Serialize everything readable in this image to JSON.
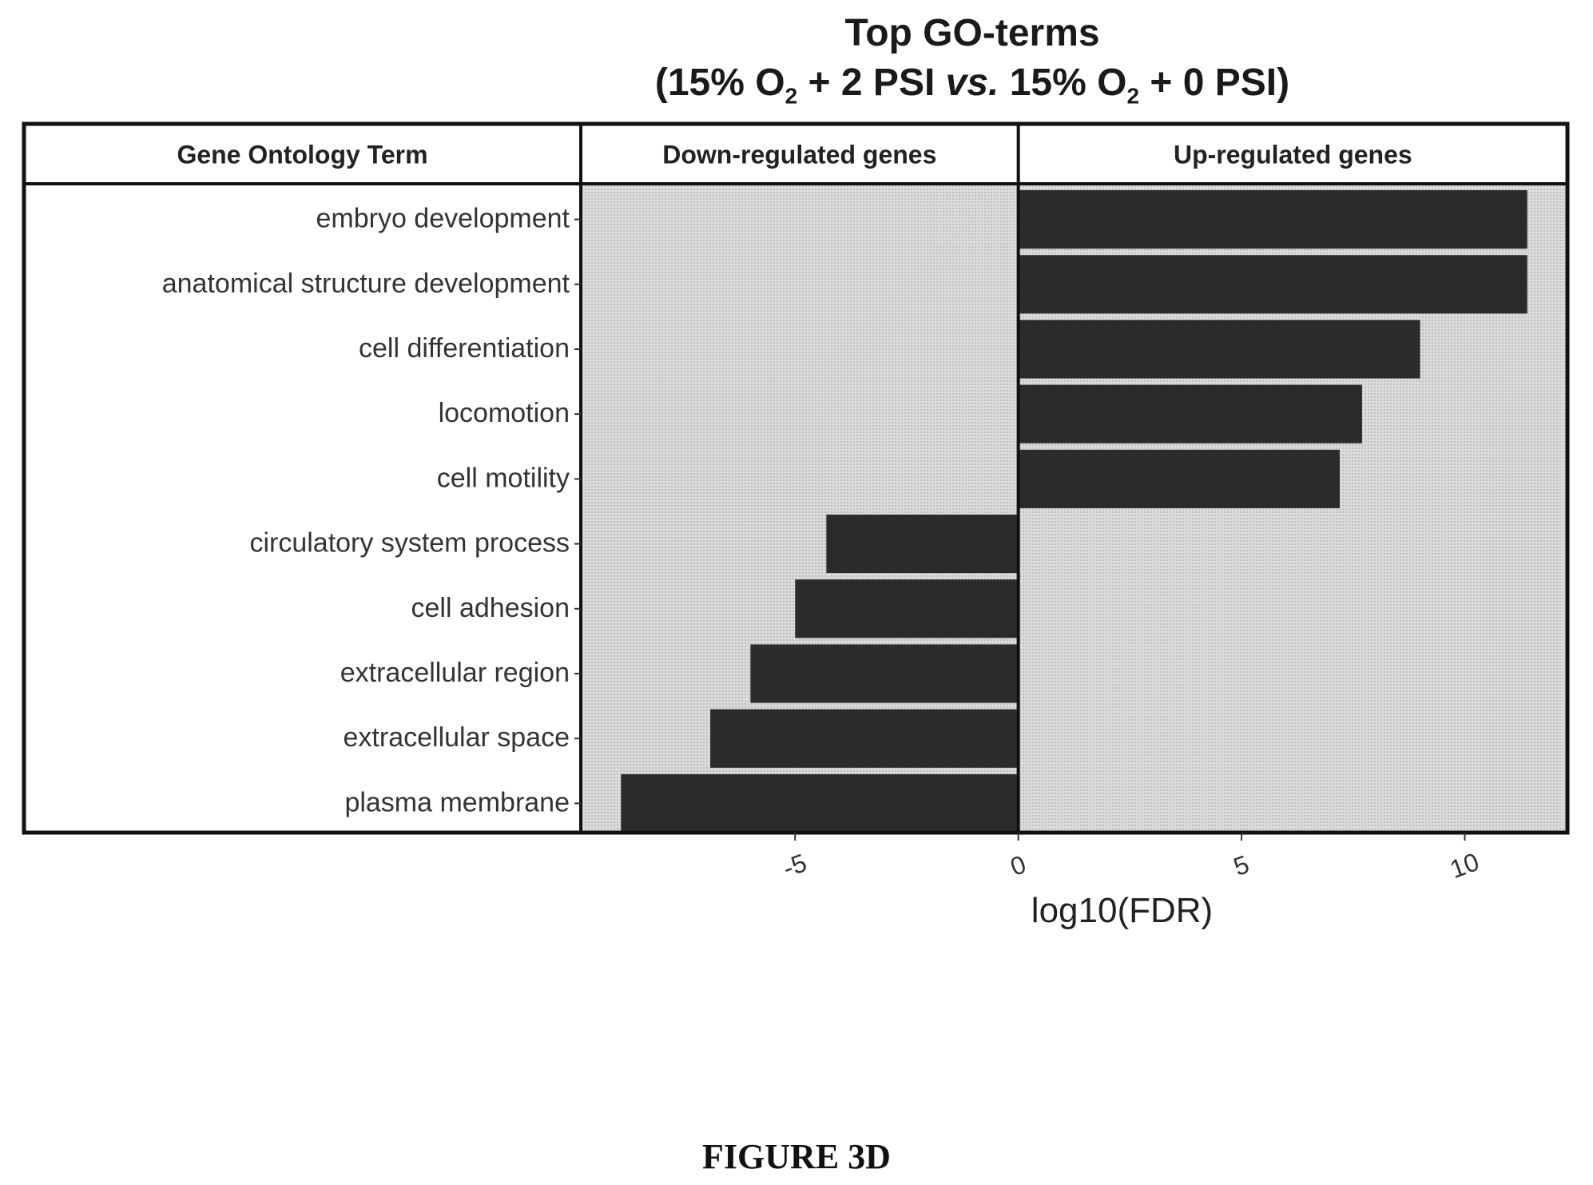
{
  "title_line1": "Top GO-terms",
  "title_line2": {
    "a": "(15% O",
    "sub1": "2",
    "b": " + 2 PSI ",
    "vs": "vs.",
    "c": " 15% O",
    "sub2": "2",
    "d": " + 0 PSI)"
  },
  "figure_caption": "FIGURE 3D",
  "colors": {
    "bar": "#2b2b2b",
    "panel_bg": "#d9d9d9",
    "border": "#111111"
  },
  "chart_data": {
    "type": "bar",
    "orientation": "horizontal",
    "headers": [
      "Gene Ontology Term",
      "Down-regulated genes",
      "Up-regulated genes"
    ],
    "categories": [
      "embryo development",
      "anatomical structure development",
      "cell differentiation",
      "locomotion",
      "cell motility",
      "circulatory system process",
      "cell adhesion",
      "extracellular region",
      "extracellular space",
      "plasma membrane"
    ],
    "values": [
      11.4,
      11.4,
      9.0,
      7.7,
      7.2,
      -4.3,
      -5.0,
      -6.0,
      -6.9,
      -8.9
    ],
    "xlabel": "log10(FDR)",
    "xlim": [
      -9.8,
      12.3
    ],
    "xticks": [
      -5,
      0,
      5,
      10
    ],
    "xtick_labels": [
      "-5",
      "0",
      "5",
      "10"
    ],
    "grid": false,
    "legend": "none"
  }
}
